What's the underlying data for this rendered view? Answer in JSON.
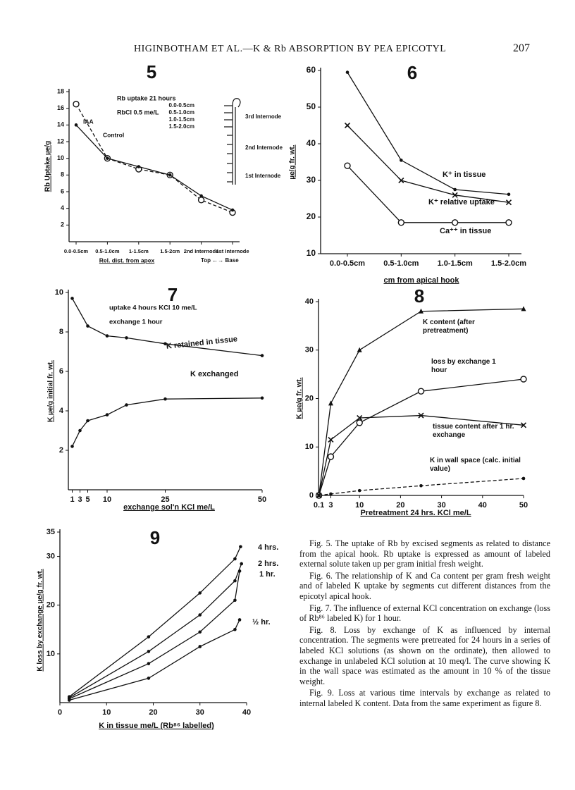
{
  "header": {
    "running_title": "HIGINBOTHAM ET AL.—K & Rb ABSORPTION BY PEA EPICOTYL",
    "page_number": "207"
  },
  "chart_data": [
    {
      "type": "line",
      "title": "5",
      "ylabel": "Rb Uptake µe/g",
      "xlabel": "Rel. dist. from apex",
      "categories": [
        "0.0-0.5cm",
        "0.5-1.0cm",
        "1-1.5cm",
        "1.5-2cm",
        "2nd Internode",
        "1st Internode"
      ],
      "ylim": [
        0,
        18
      ],
      "yticks": [
        2,
        4,
        6,
        8,
        10,
        12,
        14,
        16,
        18
      ],
      "annotations": [
        "Rb uptake 21 hours",
        "RbCl 0.5 me/L",
        "0.0-0.5cm",
        "0.5-1.0cm",
        "1.0-1.5cm",
        "1.5-2.0cm",
        "3rd Internode",
        "2nd Internode",
        "1st Internode",
        "Top ←→ Base"
      ],
      "series": [
        {
          "name": "IAA",
          "color": "#111111",
          "marker": "o",
          "dash": true,
          "values": [
            16.5,
            10,
            8.7,
            8,
            5,
            3.5
          ]
        },
        {
          "name": "Control",
          "color": "#111111",
          "marker": "dot",
          "dash": false,
          "values": [
            14,
            10,
            9,
            8,
            5.5,
            3.8
          ]
        }
      ]
    },
    {
      "type": "line",
      "title": "6",
      "ylabel": "µe/g fr. wt.",
      "xlabel": "cm from apical hook",
      "categories": [
        "0.0-0.5cm",
        "0.5-1.0cm",
        "1.0-1.5cm",
        "1.5-2.0cm"
      ],
      "ylim": [
        10,
        60
      ],
      "yticks": [
        10,
        20,
        30,
        40,
        50,
        60
      ],
      "series": [
        {
          "name": "K⁺ in tissue",
          "color": "#111111",
          "marker": "dot",
          "dash": false,
          "values": [
            59.5,
            35.5,
            27.5,
            26.2
          ]
        },
        {
          "name": "K⁺ relative uptake",
          "color": "#111111",
          "marker": "x",
          "dash": false,
          "values": [
            45,
            30,
            26,
            24
          ]
        },
        {
          "name": "Ca⁺⁺ in tissue",
          "color": "#111111",
          "marker": "o",
          "dash": false,
          "values": [
            34,
            18.5,
            18.5,
            18.5
          ]
        }
      ]
    },
    {
      "type": "line",
      "title": "7",
      "ylabel": "K µe/g initial fr. wt.",
      "xlabel": "exchange sol'n KCl me/L",
      "xlim": [
        0,
        50
      ],
      "xticks": [
        1,
        3,
        5,
        10,
        25,
        50
      ],
      "ylim": [
        0,
        10
      ],
      "yticks": [
        2,
        4,
        6,
        8,
        10
      ],
      "annotations": [
        "uptake 4 hours KCl 10 me/L",
        "exchange 1 hour"
      ],
      "series": [
        {
          "name": "K retained in tissue",
          "color": "#111111",
          "marker": "dot",
          "dash": false,
          "x": [
            1,
            5,
            10,
            15,
            25,
            50
          ],
          "values": [
            9.7,
            8.3,
            7.8,
            7.7,
            7.4,
            6.8
          ]
        },
        {
          "name": "K exchanged",
          "color": "#111111",
          "marker": "dot",
          "dash": false,
          "x": [
            1,
            3,
            5,
            10,
            15,
            25,
            50
          ],
          "values": [
            2.2,
            3.0,
            3.5,
            3.8,
            4.3,
            4.6,
            4.65
          ]
        }
      ]
    },
    {
      "type": "line",
      "title": "8",
      "ylabel": "K µe/g fr. wt.",
      "xlabel": "Pretreatment 24 hrs. KCl me/L",
      "xlim": [
        0,
        50
      ],
      "xticks": [
        0.1,
        3,
        10,
        20,
        30,
        40,
        50
      ],
      "ylim": [
        0,
        40
      ],
      "yticks": [
        0,
        10,
        20,
        30,
        40
      ],
      "series": [
        {
          "name": "K content (after pretreatment)",
          "color": "#111111",
          "marker": "triangle",
          "dash": false,
          "x": [
            0.1,
            3,
            10,
            25,
            50
          ],
          "values": [
            0,
            19,
            30,
            38,
            38.5
          ]
        },
        {
          "name": "loss by exchange 1 hour",
          "color": "#111111",
          "marker": "o",
          "dash": false,
          "x": [
            0.1,
            3,
            10,
            25,
            50
          ],
          "values": [
            0,
            8,
            15,
            21.5,
            24
          ]
        },
        {
          "name": "tissue content after 1 hr. exchange",
          "color": "#111111",
          "marker": "x",
          "dash": false,
          "x": [
            0.1,
            3,
            10,
            25,
            50
          ],
          "values": [
            0,
            11.5,
            16,
            16.5,
            14.5
          ]
        },
        {
          "name": "K in wall space (calc. initial value)",
          "color": "#111111",
          "marker": "dot",
          "dash": true,
          "x": [
            0.1,
            3,
            10,
            25,
            50
          ],
          "values": [
            0,
            0.3,
            1,
            2,
            3.5
          ]
        }
      ]
    },
    {
      "type": "line",
      "title": "9",
      "ylabel": "K loss by exchange µe/g fr. wt.",
      "xlabel": "K in tissue me/L (Rb⁸⁶ labelled)",
      "xlim": [
        0,
        40
      ],
      "xticks": [
        0,
        10,
        20,
        30,
        40
      ],
      "ylim": [
        0,
        35
      ],
      "yticks": [
        10,
        20,
        30,
        35
      ],
      "series": [
        {
          "name": "4 hrs.",
          "color": "#111111",
          "marker": "dot",
          "dash": false,
          "x": [
            2,
            19,
            30,
            37.5,
            38.7
          ],
          "values": [
            1.2,
            13.5,
            22.5,
            29.5,
            32
          ]
        },
        {
          "name": "2 hrs.",
          "color": "#111111",
          "marker": "dot",
          "dash": false,
          "x": [
            2,
            19,
            30,
            37.5,
            38.9
          ],
          "values": [
            1,
            10.5,
            18,
            25,
            28.5
          ]
        },
        {
          "name": "1 hr.",
          "color": "#111111",
          "marker": "dot",
          "dash": false,
          "x": [
            2,
            19,
            30,
            37.5,
            38.5
          ],
          "values": [
            0.8,
            8,
            14.5,
            21,
            27
          ]
        },
        {
          "name": "½ hr.",
          "color": "#111111",
          "marker": "dot",
          "dash": false,
          "x": [
            2,
            19,
            30,
            37.5,
            38.5
          ],
          "values": [
            0.5,
            5,
            11.5,
            15,
            17
          ]
        }
      ]
    }
  ],
  "captions": [
    "Fig. 5. The uptake of Rb by excised segments as related to distance from the apical hook. Rb uptake is expressed as amount of labeled external solute taken up per gram initial fresh weight.",
    "Fig. 6. The relationship of K and Ca content per gram fresh weight and of labeled K uptake by segments cut different distances from the epicotyl apical hook.",
    "Fig. 7. The influence of external KCl concentration on exchange (loss of Rb⁸⁶ labeled K) for 1 hour.",
    "Fig. 8. Loss by exchange of K as influenced by internal concentration. The segments were pretreated for 24 hours in a series of labeled KCl solutions (as shown on the ordinate), then allowed to exchange in unlabeled KCl solution at 10 meq/l. The curve showing K in the wall space was estimated as the amount in 10 % of the tissue weight.",
    "Fig. 9. Loss at various time intervals by exchange as related to internal labeled K content. Data from the same experiment as figure 8."
  ]
}
